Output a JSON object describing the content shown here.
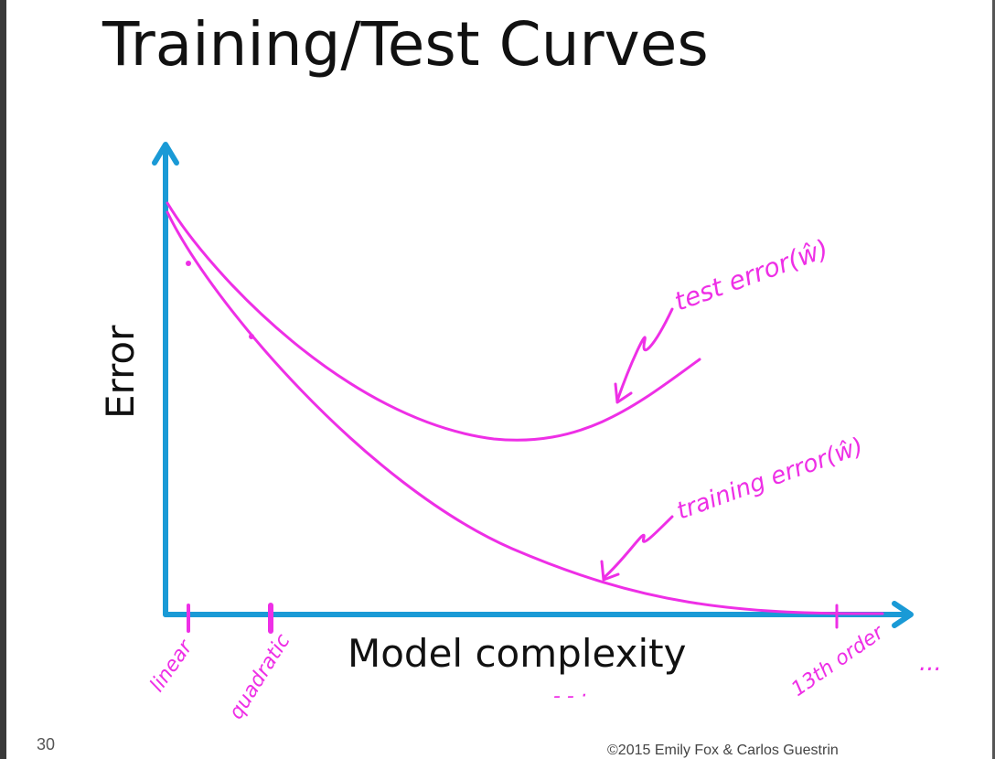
{
  "slide": {
    "title": "Training/Test Curves",
    "number": "30",
    "copyright": "©2015 Emily Fox & Carlos Guestrin"
  },
  "axes": {
    "xlabel": "Model complexity",
    "ylabel": "Error"
  },
  "annotations": {
    "test_curve": "test error(ŵ)",
    "train_curve": "training error(ŵ)",
    "tick_linear": "linear",
    "tick_quadratic": "quadratic",
    "tick_13th": "13th order",
    "trailing_dots": "...",
    "mid_dots": "- - ·"
  },
  "colors": {
    "axis": "#1a9ad6",
    "ink": "#ee2fe6",
    "text": "#111111"
  }
}
